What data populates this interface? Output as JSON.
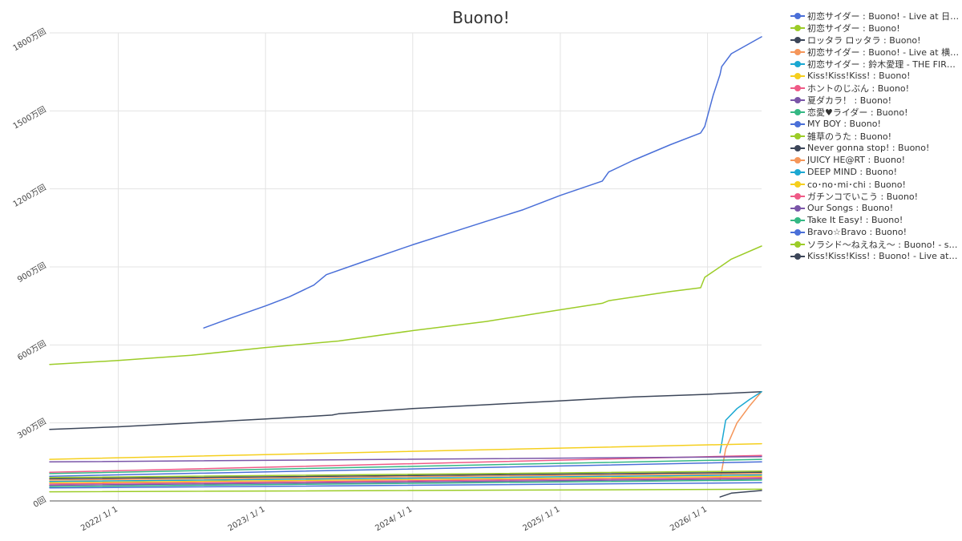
{
  "chart_data": {
    "type": "line",
    "title": "Buono!",
    "xlabel": "",
    "ylabel": "",
    "x_ticks": [
      "2022/ 1/ 1",
      "2023/ 1/ 1",
      "2024/ 1/ 1",
      "2025/ 1/ 1",
      "2026/ 1/ 1"
    ],
    "xlim": [
      "2021-07-15",
      "2026-05-15"
    ],
    "y_ticks": [
      {
        "value": 0,
        "label": "0回"
      },
      {
        "value": 3000000,
        "label": "300万回"
      },
      {
        "value": 6000000,
        "label": "600万回"
      },
      {
        "value": 9000000,
        "label": "900万回"
      },
      {
        "value": 12000000,
        "label": "1200万回"
      },
      {
        "value": 15000000,
        "label": "1500万回"
      },
      {
        "value": 18000000,
        "label": "1800万回"
      }
    ],
    "ylim": [
      0,
      18000000
    ],
    "grid": true,
    "legend_position": "right",
    "series": [
      {
        "name": "初恋サイダー : Buono! - Live at 日本...",
        "color": "#4a6fd8",
        "x": [
          "2022-08-01",
          "2022-10-01",
          "2023-01-01",
          "2023-03-01",
          "2023-05-01",
          "2023-06-01",
          "2023-09-01",
          "2024-01-01",
          "2024-04-01",
          "2024-07-01",
          "2024-10-01",
          "2025-01-01",
          "2025-04-15",
          "2025-05-01",
          "2025-07-01",
          "2025-10-01",
          "2025-12-15",
          "2025-12-25",
          "2026-01-15",
          "2026-02-01",
          "2026-02-05",
          "2026-03-01",
          "2026-05-15"
        ],
        "values": [
          6650000,
          7000000,
          7500000,
          7850000,
          8300000,
          8700000,
          9200000,
          9850000,
          10300000,
          10750000,
          11200000,
          11750000,
          12300000,
          12650000,
          13100000,
          13700000,
          14150000,
          14400000,
          15600000,
          16400000,
          16700000,
          17200000,
          17850000
        ]
      },
      {
        "name": "初恋サイダー : Buono!",
        "color": "#9ccc28",
        "x": [
          "2021-07-15",
          "2022-01-01",
          "2022-07-01",
          "2023-01-01",
          "2023-07-01",
          "2024-01-01",
          "2024-07-01",
          "2025-01-01",
          "2025-04-15",
          "2025-05-01",
          "2025-10-01",
          "2025-12-15",
          "2025-12-25",
          "2026-02-01",
          "2026-03-01",
          "2026-05-15"
        ],
        "values": [
          5250000,
          5400000,
          5600000,
          5900000,
          6150000,
          6550000,
          6900000,
          7350000,
          7600000,
          7700000,
          8050000,
          8200000,
          8600000,
          9000000,
          9300000,
          9800000
        ]
      },
      {
        "name": "ロッタラ ロッタラ : Buono!",
        "color": "#3c4659",
        "x": [
          "2021-07-15",
          "2022-01-01",
          "2022-07-01",
          "2023-01-01",
          "2023-06-15",
          "2023-07-01",
          "2024-01-01",
          "2024-07-01",
          "2025-01-01",
          "2025-07-01",
          "2026-01-01",
          "2026-05-15"
        ],
        "values": [
          2750000,
          2850000,
          3000000,
          3150000,
          3300000,
          3350000,
          3550000,
          3700000,
          3850000,
          4000000,
          4100000,
          4200000
        ]
      },
      {
        "name": "初恋サイダー : Buono! - Live at 横浜...",
        "color": "#f5965a",
        "x": [
          "2026-02-01",
          "2026-02-15",
          "2026-03-15",
          "2026-04-15",
          "2026-05-15"
        ],
        "values": [
          800000,
          2000000,
          3000000,
          3650000,
          4200000
        ]
      },
      {
        "name": "初恋サイダー : 鈴木愛理 - THE FIRST...",
        "color": "#1ba8d2",
        "x": [
          "2026-02-01",
          "2026-02-15",
          "2026-03-15",
          "2026-04-15",
          "2026-05-15"
        ],
        "values": [
          1850000,
          3100000,
          3550000,
          3900000,
          4200000
        ]
      },
      {
        "name": "Kiss!Kiss!Kiss! : Buono!",
        "color": "#f5cf1e",
        "x": [
          "2021-07-15",
          "2026-05-15"
        ],
        "values": [
          1600000,
          2200000
        ]
      },
      {
        "name": "ホントのじぶん : Buono!",
        "color": "#ef5a87",
        "x": [
          "2021-07-15",
          "2026-05-15"
        ],
        "values": [
          1100000,
          1750000
        ]
      },
      {
        "name": "夏ダカラ！ : Buono!",
        "color": "#7a55a8",
        "x": [
          "2021-07-15",
          "2026-05-15"
        ],
        "values": [
          1500000,
          1700000
        ]
      },
      {
        "name": "恋愛♥ライダー : Buono!",
        "color": "#34b884",
        "x": [
          "2021-07-15",
          "2026-05-15"
        ],
        "values": [
          1050000,
          1600000
        ]
      },
      {
        "name": "MY BOY : Buono!",
        "color": "#4a6fd8",
        "x": [
          "2021-07-15",
          "2026-05-15"
        ],
        "values": [
          950000,
          1500000
        ]
      },
      {
        "name": "雑草のうた : Buono!",
        "color": "#9ccc28",
        "x": [
          "2021-07-15",
          "2026-05-15"
        ],
        "values": [
          900000,
          1150000
        ]
      },
      {
        "name": "Never gonna stop! : Buono!",
        "color": "#3c4659",
        "x": [
          "2021-07-15",
          "2026-05-15"
        ],
        "values": [
          850000,
          1100000
        ]
      },
      {
        "name": "JUICY HE@RT : Buono!",
        "color": "#f5965a",
        "x": [
          "2021-07-15",
          "2026-05-15"
        ],
        "values": [
          800000,
          1050000
        ]
      },
      {
        "name": "DEEP MIND : Buono!",
        "color": "#1ba8d2",
        "x": [
          "2021-07-15",
          "2026-05-15"
        ],
        "values": [
          750000,
          1000000
        ]
      },
      {
        "name": "co･no･mi･chi : Buono!",
        "color": "#f5cf1e",
        "x": [
          "2021-07-15",
          "2026-05-15"
        ],
        "values": [
          700000,
          950000
        ]
      },
      {
        "name": "ガチンコでいこう : Buono!",
        "color": "#ef5a87",
        "x": [
          "2021-07-15",
          "2026-05-15"
        ],
        "values": [
          650000,
          900000
        ]
      },
      {
        "name": "Our Songs : Buono!",
        "color": "#7a55a8",
        "x": [
          "2021-07-15",
          "2026-05-15"
        ],
        "values": [
          600000,
          850000
        ]
      },
      {
        "name": "Take It Easy! : Buono!",
        "color": "#34b884",
        "x": [
          "2021-07-15",
          "2026-05-15"
        ],
        "values": [
          550000,
          800000
        ]
      },
      {
        "name": "Bravo☆Bravo : Buono!",
        "color": "#4a6fd8",
        "x": [
          "2021-07-15",
          "2026-05-15"
        ],
        "values": [
          500000,
          700000
        ]
      },
      {
        "name": "ソラシド～ねえねえ～ : Buono! - shor...",
        "color": "#9ccc28",
        "x": [
          "2021-07-15",
          "2026-05-15"
        ],
        "values": [
          350000,
          450000
        ]
      },
      {
        "name": "Kiss!Kiss!Kiss! : Buono! - Live at ...",
        "color": "#3c4659",
        "x": [
          "2026-02-01",
          "2026-03-01",
          "2026-05-15"
        ],
        "values": [
          150000,
          300000,
          400000
        ]
      }
    ]
  }
}
